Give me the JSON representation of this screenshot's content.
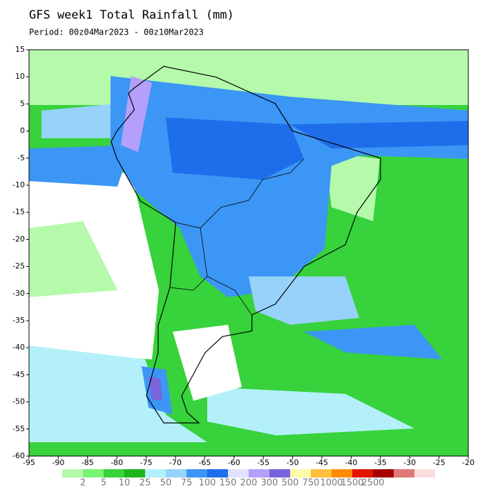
{
  "title": "GFS week1 Total Rainfall (mm)",
  "period": "Period: 00z04Mar2023 - 00z10Mar2023",
  "map": {
    "lonlim": [
      -95,
      -20
    ],
    "latlim": [
      -60,
      15
    ],
    "lon_ticks": [
      -95,
      -90,
      -85,
      -80,
      -75,
      -70,
      -65,
      -60,
      -55,
      -50,
      -45,
      -40,
      -35,
      -30,
      -25,
      -20
    ],
    "lat_ticks": [
      15,
      10,
      5,
      0,
      -5,
      -10,
      -15,
      -20,
      -25,
      -30,
      -35,
      -40,
      -45,
      -50,
      -55,
      -60
    ]
  },
  "colorbar": {
    "labels": [
      2,
      5,
      10,
      25,
      50,
      75,
      100,
      150,
      200,
      300,
      500,
      750,
      1000,
      1500,
      2500
    ],
    "colors": [
      "#b4faaa",
      "#78f573",
      "#37d23c",
      "#1eb41e",
      "#b4f0fa",
      "#96d2fa",
      "#3c96f5",
      "#1e6eeb",
      "#e1e1ff",
      "#b4a0fa",
      "#7864dc",
      "#fffaaa",
      "#ffc03c",
      "#ff8c00",
      "#e11400",
      "#a50000",
      "#e17878",
      "#fadcdc"
    ]
  }
}
